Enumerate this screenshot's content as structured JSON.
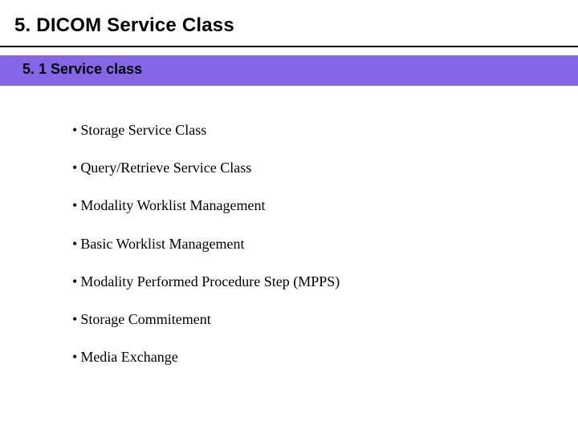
{
  "heading": "5. DICOM Service Class",
  "subheading": "5. 1 Service class",
  "band_color": "#8666e6",
  "heading_fontsize": 24,
  "subheading_fontsize": 18,
  "item_fontsize": 18,
  "items": [
    "Storage Service Class",
    "Query/Retrieve Service Class",
    "Modality Worklist Management",
    "Basic Worklist Management",
    "Modality Performed Procedure Step (MPPS)",
    "Storage Commitement",
    "Media Exchange"
  ]
}
